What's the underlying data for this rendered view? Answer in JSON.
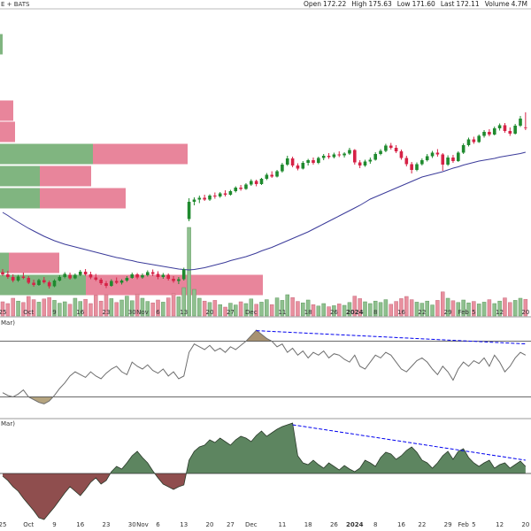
{
  "chart_data": [
    {
      "type": "candlestick",
      "title": "E + BATS",
      "quote": [
        {
          "label": "Open",
          "value": 172.22
        },
        {
          "label": "High",
          "value": 175.63
        },
        {
          "label": "Low",
          "value": 171.6,
          "value_label": "171.60"
        },
        {
          "label": "Last",
          "value": 172.11
        },
        {
          "label": "Volume",
          "value": 4.7,
          "value_label": "4.7M"
        }
      ],
      "categories": [
        "25",
        null,
        null,
        null,
        null,
        "Oct",
        null,
        null,
        null,
        null,
        "9",
        null,
        null,
        null,
        null,
        "16",
        null,
        null,
        null,
        null,
        "23",
        null,
        null,
        null,
        null,
        "30",
        null,
        "Nov",
        null,
        null,
        "6",
        null,
        null,
        null,
        null,
        "13",
        null,
        null,
        null,
        null,
        "20",
        null,
        null,
        null,
        "27",
        null,
        null,
        null,
        "Dec",
        null,
        null,
        null,
        null,
        null,
        "11",
        null,
        null,
        null,
        null,
        "18",
        null,
        null,
        null,
        null,
        "26",
        null,
        null,
        null,
        "2024",
        null,
        null,
        null,
        "8",
        null,
        null,
        null,
        null,
        "16",
        null,
        null,
        null,
        "22",
        null,
        null,
        null,
        null,
        "29",
        null,
        null,
        "Feb",
        null,
        "5",
        null,
        null,
        null,
        null,
        "12",
        null,
        null,
        null,
        null,
        "20"
      ],
      "ohlc": [
        [
          139.5,
          140.2,
          138.6,
          139
        ],
        [
          139,
          139.8,
          138,
          138.4
        ],
        [
          138.4,
          139,
          137.2,
          137.6
        ],
        [
          137.6,
          138.9,
          137.3,
          138.5
        ],
        [
          138.5,
          139.4,
          137.9,
          138.2
        ],
        [
          138.2,
          138.6,
          136.8,
          137.1
        ],
        [
          137.1,
          137.8,
          136.2,
          136.6
        ],
        [
          136.6,
          138,
          136.4,
          137.7
        ],
        [
          137.7,
          138.4,
          136.9,
          137.2
        ],
        [
          137.2,
          137.6,
          135.8,
          136.3
        ],
        [
          136.3,
          137.9,
          136.1,
          137.6
        ],
        [
          137.6,
          138.8,
          137.4,
          138.4
        ],
        [
          138.4,
          139.5,
          138.1,
          139.1
        ],
        [
          138.9,
          139.4,
          137.8,
          138.1
        ],
        [
          138.1,
          139.2,
          137.9,
          138.9
        ],
        [
          138.9,
          140,
          138.6,
          139.6
        ],
        [
          139.6,
          140.2,
          138.7,
          139
        ],
        [
          139,
          139.6,
          137.9,
          138.3
        ],
        [
          138.3,
          139.1,
          137.5,
          137.8
        ],
        [
          137.8,
          138.2,
          136.6,
          137
        ],
        [
          137,
          137.5,
          135.9,
          136.4
        ],
        [
          136.4,
          137.9,
          136.2,
          137.5
        ],
        [
          137.5,
          138.3,
          136.8,
          137.1
        ],
        [
          137.1,
          137.9,
          136.7,
          137.6
        ],
        [
          137.6,
          138.6,
          137.3,
          138.2
        ],
        [
          138.2,
          139.4,
          138,
          139
        ],
        [
          139,
          139.3,
          137.9,
          138.3
        ],
        [
          138.3,
          139.2,
          138,
          138.8
        ],
        [
          138.8,
          139.9,
          138.5,
          139.5
        ],
        [
          139.5,
          140.1,
          138.6,
          139.1
        ],
        [
          139.1,
          139.7,
          137.9,
          138.4
        ],
        [
          138.4,
          139.3,
          138,
          138.9
        ],
        [
          138.9,
          139.2,
          137.6,
          138
        ],
        [
          138,
          138.6,
          137.1,
          137.5
        ],
        [
          137.5,
          138.4,
          136.8,
          137.9
        ],
        [
          137.9,
          140.5,
          137.6,
          140.1
        ],
        [
          151.5,
          156.2,
          151,
          155.4
        ],
        [
          155.4,
          156.4,
          154.6,
          155.9
        ],
        [
          155.9,
          156.8,
          155.1,
          156.3
        ],
        [
          156.3,
          157,
          155.6,
          155.9
        ],
        [
          155.9,
          157.1,
          155.6,
          156.8
        ],
        [
          156.8,
          157.5,
          156.1,
          156.6
        ],
        [
          156.6,
          157.6,
          156.3,
          157.3
        ],
        [
          157.3,
          158,
          156.6,
          157
        ],
        [
          157,
          158.1,
          156.8,
          157.8
        ],
        [
          157.8,
          158.9,
          157.5,
          158.6
        ],
        [
          158.6,
          159.2,
          157.9,
          158.3
        ],
        [
          158.3,
          159.6,
          158.1,
          159.3
        ],
        [
          159.3,
          160.5,
          159,
          160.1
        ],
        [
          160.1,
          160.4,
          158.9,
          159.4
        ],
        [
          159.4,
          160.8,
          159.2,
          160.6
        ],
        [
          160.6,
          161.9,
          160.3,
          161.5
        ],
        [
          161.5,
          162.3,
          160.8,
          161.1
        ],
        [
          161.1,
          162.6,
          160.9,
          162.3
        ],
        [
          162.3,
          164.2,
          162,
          163.8
        ],
        [
          163.8,
          165.8,
          163.5,
          165.2
        ],
        [
          165.2,
          165.6,
          163.2,
          163.6
        ],
        [
          163.6,
          164.1,
          162.5,
          162.9
        ],
        [
          162.9,
          164.6,
          162.7,
          164.2
        ],
        [
          164.2,
          165.1,
          163.6,
          164.8
        ],
        [
          164.8,
          165.4,
          163.8,
          164.2
        ],
        [
          164.2,
          165.6,
          163.9,
          165.3
        ],
        [
          165.3,
          166.2,
          164.8,
          165.8
        ],
        [
          165.8,
          166.4,
          165.1,
          165.5
        ],
        [
          165.5,
          166.5,
          165.2,
          166.1
        ],
        [
          166.1,
          166.8,
          165.5,
          165.9
        ],
        [
          165.9,
          166.6,
          165.4,
          166.3
        ],
        [
          166.3,
          167.6,
          166,
          167.1
        ],
        [
          167.1,
          167.3,
          163.8,
          164.3
        ],
        [
          164.3,
          164.8,
          163,
          163.6
        ],
        [
          163.6,
          164.9,
          163.3,
          164.5
        ],
        [
          164.5,
          165.4,
          164,
          164.9
        ],
        [
          164.9,
          166.6,
          164.7,
          166.2
        ],
        [
          166.2,
          167.3,
          165.9,
          166.9
        ],
        [
          166.9,
          168.5,
          166.6,
          168.1
        ],
        [
          168.1,
          168.7,
          167.2,
          167.6
        ],
        [
          167.6,
          168.2,
          166.4,
          166.8
        ],
        [
          166.8,
          167.2,
          164.9,
          165.3
        ],
        [
          165.3,
          165.8,
          163.4,
          163.9
        ],
        [
          163.9,
          164.4,
          161.8,
          162.6
        ],
        [
          162.6,
          164.3,
          162.3,
          163.9
        ],
        [
          163.9,
          165.2,
          163.6,
          164.8
        ],
        [
          164.8,
          166.2,
          164.5,
          165.7
        ],
        [
          165.7,
          166.9,
          165.3,
          166.5
        ],
        [
          166.5,
          167.3,
          165.6,
          166.1
        ],
        [
          166.1,
          166.4,
          162.4,
          163.8
        ],
        [
          163.8,
          165.9,
          163.5,
          165.4
        ],
        [
          165.4,
          166,
          164.2,
          164.6
        ],
        [
          164.6,
          166.8,
          164.4,
          166.5
        ],
        [
          166.5,
          168.6,
          166.2,
          168.2
        ],
        [
          168.2,
          169.9,
          167.9,
          169.5
        ],
        [
          169.5,
          170.1,
          168.5,
          168.9
        ],
        [
          168.9,
          170.6,
          168.7,
          170.3
        ],
        [
          170.3,
          171.6,
          169.9,
          171.2
        ],
        [
          171.2,
          171.8,
          170.2,
          170.6
        ],
        [
          170.6,
          172.4,
          170.4,
          172
        ],
        [
          172,
          173.1,
          171.5,
          172.7
        ],
        [
          172.7,
          173.2,
          171,
          171.4
        ],
        [
          171.4,
          172.2,
          170.3,
          170.8
        ],
        [
          170.8,
          173,
          170.6,
          172.6
        ],
        [
          172.6,
          174.8,
          172.3,
          174.2
        ],
        [
          172.22,
          175.63,
          171.6,
          172.11
        ]
      ],
      "up_color": "#1f8a2e",
      "down_color": "#d62246",
      "ylim": [
        129.6,
        199
      ],
      "moving_average": {
        "color": "#3b3b9a",
        "values": [
          153,
          152.3,
          151.5,
          150.8,
          150.1,
          149.4,
          148.8,
          148.2,
          147.6,
          147.1,
          146.6,
          146.2,
          145.8,
          145.5,
          145.2,
          144.9,
          144.6,
          144.3,
          144,
          143.7,
          143.4,
          143.1,
          142.8,
          142.6,
          142.3,
          142.1,
          141.8,
          141.6,
          141.4,
          141.2,
          141,
          140.8,
          140.6,
          140.4,
          140.2,
          140.1,
          140,
          140.1,
          140.3,
          140.5,
          140.8,
          141.1,
          141.4,
          141.7,
          142.1,
          142.4,
          142.7,
          143,
          143.4,
          143.8,
          144.3,
          144.7,
          145.1,
          145.6,
          146.1,
          146.6,
          147.1,
          147.6,
          148.1,
          148.6,
          149.2,
          149.8,
          150.4,
          151,
          151.6,
          152.2,
          152.8,
          153.4,
          154,
          154.6,
          155.3,
          156,
          156.5,
          157,
          157.5,
          158,
          158.5,
          159,
          159.5,
          160,
          160.5,
          161,
          161.3,
          161.6,
          161.9,
          162.2,
          162.6,
          163,
          163.3,
          163.7,
          164,
          164.3,
          164.6,
          164.8,
          165,
          165.2,
          165.5,
          165.7,
          165.9,
          166.1,
          166.3,
          166.6
        ]
      },
      "volume": {
        "ylim": [
          0,
          30
        ],
        "up_color": "#8fc08f",
        "down_color": "#e8909f",
        "values": [
          4,
          3.5,
          5,
          4.2,
          3.8,
          5.5,
          4.6,
          3.9,
          4.8,
          5.2,
          4.4,
          3.6,
          4,
          3.3,
          5,
          4.1,
          4.7,
          3.5,
          5.8,
          4.2,
          6,
          4.9,
          3.8,
          4.5,
          5.6,
          4.3,
          6.2,
          5,
          4.1,
          3.7,
          4.5,
          3.9,
          5.1,
          6.3,
          5.4,
          8,
          25,
          7.5,
          5,
          4.2,
          3.8,
          4.4,
          3.2,
          2.5,
          3.6,
          3.1,
          4,
          3.5,
          4.8,
          3.3,
          3.9,
          4.6,
          3.2,
          5.1,
          4.4,
          6,
          5.2,
          4.1,
          3.7,
          4.5,
          3.2,
          2.8,
          3.5,
          2.6,
          2.9,
          3.4,
          3,
          3.8,
          5.6,
          4.9,
          4,
          3.5,
          4.2,
          3.8,
          4.6,
          3.3,
          4.1,
          4.9,
          5.5,
          4.6,
          3.9,
          3.6,
          4.2,
          3.1,
          4.4,
          6.8,
          5,
          4.3,
          3.8,
          4.5,
          3.7,
          4.1,
          3.4,
          3.9,
          4.6,
          3.5,
          4.2,
          5.1,
          3.8,
          4.4,
          5,
          4.7
        ]
      },
      "volume_by_price": {
        "xlim": [
          0,
          600
        ],
        "up_color": "#6aa86a",
        "down_color": "#e4708a",
        "levels": [
          {
            "price": 191,
            "up": 3,
            "down": 0
          },
          {
            "price": 176,
            "up": 0,
            "down": 15
          },
          {
            "price": 171.2,
            "up": 0,
            "down": 17
          },
          {
            "price": 166.2,
            "up": 105,
            "down": 107
          },
          {
            "price": 161.2,
            "up": 45,
            "down": 58
          },
          {
            "price": 156.2,
            "up": 45,
            "down": 97
          },
          {
            "price": 141.6,
            "up": 10,
            "down": 57
          },
          {
            "price": 136.6,
            "up": 97,
            "down": 200
          }
        ]
      }
    },
    {
      "type": "line",
      "label": "Mar)",
      "color": "#6e6e6e",
      "ylim": [
        15,
        85
      ],
      "levels": [
        70,
        30
      ],
      "fill_colors": [
        "#a89272",
        "#b5a47f"
      ],
      "values": [
        33,
        31,
        30,
        32,
        35,
        30,
        28,
        26,
        25,
        27,
        31,
        36,
        40,
        45,
        48,
        46,
        44,
        48,
        45,
        43,
        47,
        50,
        52,
        48,
        46,
        55,
        52,
        50,
        53,
        49,
        47,
        50,
        45,
        48,
        43,
        45,
        62,
        68,
        66,
        64,
        67,
        63,
        65,
        62,
        66,
        64,
        67,
        70,
        74,
        78,
        75,
        72,
        70,
        66,
        68,
        62,
        65,
        60,
        63,
        58,
        62,
        60,
        63,
        58,
        61,
        60,
        57,
        55,
        60,
        52,
        50,
        55,
        60,
        58,
        62,
        60,
        55,
        50,
        48,
        52,
        56,
        58,
        55,
        50,
        46,
        52,
        48,
        42,
        50,
        55,
        52,
        56,
        54,
        58,
        52,
        60,
        55,
        48,
        52,
        58,
        62,
        60
      ],
      "trendline": {
        "x": [
          49,
          101
        ],
        "values": [
          77.6,
          68.1
        ],
        "color": "#0000ee"
      }
    },
    {
      "type": "area",
      "label": "Mar)",
      "ylim": [
        -6.5,
        6
      ],
      "up_color": "#5d8560",
      "down_color": "#8f4e4e",
      "line_color": "#2a3a2a",
      "values": [
        -0.3,
        -0.8,
        -1.5,
        -2,
        -2.8,
        -3.5,
        -4.2,
        -5,
        -5.2,
        -4.5,
        -3.8,
        -3,
        -2.2,
        -1.5,
        -2,
        -2.5,
        -1.8,
        -1,
        -0.5,
        -1.2,
        -0.8,
        0.2,
        0.8,
        0.5,
        1.2,
        2,
        2.5,
        1.8,
        1.2,
        0.3,
        -0.5,
        -1.2,
        -1.5,
        -1.8,
        -1.5,
        -1.3,
        1.5,
        2.5,
        3,
        3.2,
        3.8,
        3.5,
        4,
        3.6,
        3.2,
        3.8,
        4.2,
        4,
        3.6,
        4.3,
        4.8,
        4.2,
        4.6,
        5,
        5.3,
        5.5,
        5.7,
        2,
        1.2,
        1,
        1.5,
        1,
        0.6,
        1.2,
        0.8,
        0.4,
        0.9,
        0.5,
        0.2,
        0.6,
        1.5,
        1.2,
        0.8,
        1.8,
        2.4,
        2.2,
        1.6,
        2,
        2.6,
        3,
        2.4,
        1.5,
        1.2,
        0.6,
        1.2,
        2,
        2.5,
        1.6,
        2.5,
        2.8,
        1.8,
        1.2,
        0.8,
        1.2,
        1.5,
        0.6,
        1,
        1.2,
        0.6,
        1,
        1.4,
        0.8
      ],
      "trendline": {
        "x": [
          56,
          101
        ],
        "values": [
          5.5,
          1.5
        ],
        "color": "#0000ee"
      }
    }
  ]
}
